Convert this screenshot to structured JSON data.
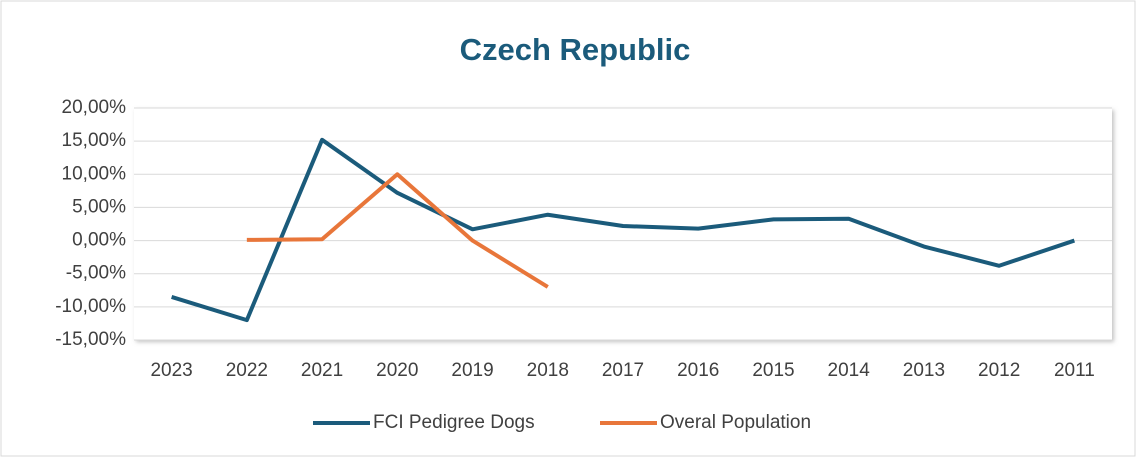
{
  "chart_data": {
    "type": "line",
    "title": "Czech Republic",
    "categories": [
      "2023",
      "2022",
      "2021",
      "2020",
      "2019",
      "2018",
      "2017",
      "2016",
      "2015",
      "2014",
      "2013",
      "2012",
      "2011"
    ],
    "series": [
      {
        "name": "FCI Pedigree Dogs",
        "color": "#1b5b7b",
        "values": [
          -8.5,
          -12,
          15.2,
          7.2,
          1.7,
          3.9,
          2.2,
          1.8,
          3.2,
          3.3,
          -0.9,
          -3.8,
          0
        ]
      },
      {
        "name": "Overal Population",
        "color": "#e8763a",
        "values": [
          null,
          0.1,
          0.2,
          10.0,
          0.0,
          -7.0,
          null,
          null,
          null,
          null,
          null,
          null,
          null
        ]
      }
    ],
    "ylim": [
      -15,
      20
    ],
    "yticks": [
      {
        "value": -15,
        "label": "-15,00%"
      },
      {
        "value": -10,
        "label": "-10,00%"
      },
      {
        "value": -5,
        "label": "-5,00%"
      },
      {
        "value": 0,
        "label": "0,00%"
      },
      {
        "value": 5,
        "label": "5,00%"
      },
      {
        "value": 10,
        "label": "10,00%"
      },
      {
        "value": 15,
        "label": "15,00%"
      },
      {
        "value": 20,
        "label": "20,00%"
      }
    ],
    "grid": true,
    "legend": "bottom"
  }
}
